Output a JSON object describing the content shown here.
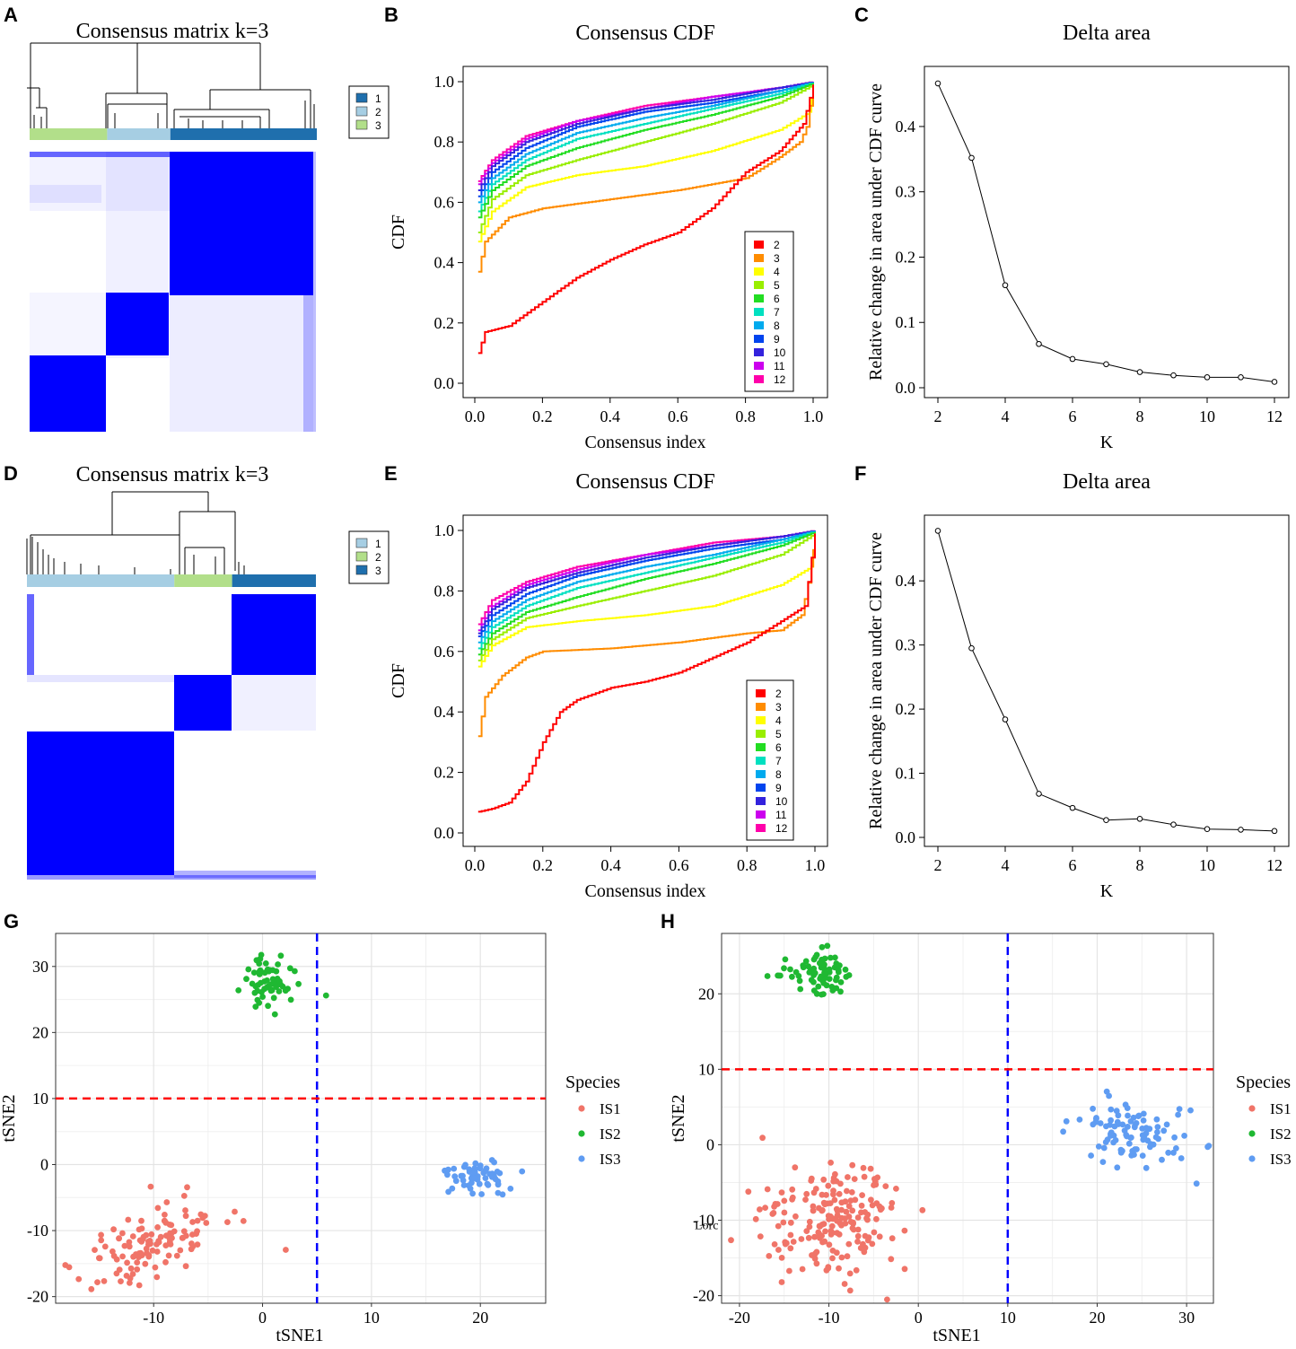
{
  "colors": {
    "matrix_blue": "#0000ff",
    "cdf_palette": [
      "#ff0000",
      "#ff8c00",
      "#ffff00",
      "#99ee00",
      "#22dd22",
      "#00e0c0",
      "#00aaee",
      "#0044ee",
      "#3322dd",
      "#cc00ee",
      "#ff00aa"
    ],
    "ts_is1": "#f07468",
    "ts_is2": "#1fb832",
    "ts_is3": "#5f9cf2",
    "vline": "#0000ff",
    "hline": "#ff0000"
  },
  "panels": {
    "A": {
      "label": "A",
      "title": "Consensus matrix k=3",
      "legend": [
        "1",
        "2",
        "3"
      ],
      "legend_colors": [
        "#1f6fad",
        "#a6cee3",
        "#b2df8a"
      ],
      "bar_colors": [
        "#b2df8a",
        "#a6cee3",
        "#1f6fad"
      ],
      "bar_widths": [
        0.27,
        0.22,
        0.51
      ]
    },
    "D": {
      "label": "D",
      "title": "Consensus matrix k=3",
      "legend": [
        "1",
        "2",
        "3"
      ],
      "legend_colors": [
        "#a6cee3",
        "#b2df8a",
        "#1f6fad"
      ],
      "bar_colors": [
        "#a6cee3",
        "#b2df8a",
        "#1f6fad"
      ],
      "bar_widths": [
        0.51,
        0.2,
        0.29
      ]
    },
    "B": {
      "label": "B"
    },
    "C": {
      "label": "C"
    },
    "E": {
      "label": "E"
    },
    "F": {
      "label": "F"
    },
    "G": {
      "label": "G"
    },
    "H": {
      "label": "H"
    }
  },
  "chart_data": [
    {
      "id": "B",
      "type": "line",
      "title": "Consensus CDF",
      "xlabel": "Consensus index",
      "ylabel": "CDF",
      "xlim": [
        0,
        1
      ],
      "ylim": [
        0,
        1
      ],
      "xticks": [
        "0.0",
        "0.2",
        "0.4",
        "0.6",
        "0.8",
        "1.0"
      ],
      "yticks": [
        "0.0",
        "0.2",
        "0.4",
        "0.6",
        "0.8",
        "1.0"
      ],
      "legend": [
        "2",
        "3",
        "4",
        "5",
        "6",
        "7",
        "8",
        "9",
        "10",
        "11",
        "12"
      ],
      "series": [
        {
          "name": "2",
          "x": [
            0.01,
            0.03,
            0.1,
            0.2,
            0.3,
            0.4,
            0.5,
            0.6,
            0.7,
            0.8,
            0.9,
            0.97,
            1.0
          ],
          "values": [
            0.1,
            0.17,
            0.19,
            0.27,
            0.35,
            0.41,
            0.46,
            0.5,
            0.58,
            0.7,
            0.77,
            0.86,
            0.99
          ]
        },
        {
          "name": "3",
          "x": [
            0.01,
            0.03,
            0.1,
            0.2,
            0.4,
            0.6,
            0.7,
            0.8,
            0.9,
            0.96,
            0.98,
            1.0
          ],
          "values": [
            0.37,
            0.47,
            0.55,
            0.58,
            0.61,
            0.64,
            0.66,
            0.68,
            0.75,
            0.8,
            0.85,
            0.99
          ]
        },
        {
          "name": "4",
          "x": [
            0.01,
            0.05,
            0.15,
            0.3,
            0.5,
            0.7,
            0.9,
            0.99,
            1.0
          ],
          "values": [
            0.47,
            0.57,
            0.65,
            0.69,
            0.72,
            0.77,
            0.84,
            0.9,
            0.99
          ]
        },
        {
          "name": "5",
          "x": [
            0.01,
            0.05,
            0.15,
            0.3,
            0.5,
            0.7,
            0.9,
            1.0
          ],
          "values": [
            0.5,
            0.61,
            0.69,
            0.74,
            0.8,
            0.86,
            0.93,
            0.99
          ]
        },
        {
          "name": "6",
          "x": [
            0.01,
            0.05,
            0.15,
            0.3,
            0.5,
            0.7,
            0.9,
            1.0
          ],
          "values": [
            0.55,
            0.64,
            0.72,
            0.78,
            0.84,
            0.89,
            0.95,
            0.995
          ]
        },
        {
          "name": "7",
          "x": [
            0.01,
            0.05,
            0.15,
            0.3,
            0.5,
            0.7,
            0.9,
            1.0
          ],
          "values": [
            0.57,
            0.66,
            0.74,
            0.81,
            0.86,
            0.91,
            0.96,
            0.997
          ]
        },
        {
          "name": "8",
          "x": [
            0.01,
            0.05,
            0.15,
            0.3,
            0.5,
            0.7,
            0.9,
            1.0
          ],
          "values": [
            0.6,
            0.68,
            0.76,
            0.83,
            0.88,
            0.92,
            0.97,
            0.998
          ]
        },
        {
          "name": "9",
          "x": [
            0.01,
            0.05,
            0.15,
            0.3,
            0.5,
            0.7,
            0.9,
            1.0
          ],
          "values": [
            0.62,
            0.7,
            0.78,
            0.85,
            0.9,
            0.93,
            0.97,
            0.998
          ]
        },
        {
          "name": "10",
          "x": [
            0.01,
            0.05,
            0.15,
            0.3,
            0.5,
            0.7,
            0.9,
            1.0
          ],
          "values": [
            0.64,
            0.72,
            0.8,
            0.86,
            0.91,
            0.94,
            0.98,
            0.999
          ]
        },
        {
          "name": "11",
          "x": [
            0.01,
            0.05,
            0.15,
            0.3,
            0.5,
            0.7,
            0.9,
            1.0
          ],
          "values": [
            0.66,
            0.73,
            0.81,
            0.87,
            0.91,
            0.95,
            0.98,
            0.999
          ]
        },
        {
          "name": "12",
          "x": [
            0.01,
            0.05,
            0.15,
            0.3,
            0.5,
            0.7,
            0.9,
            1.0
          ],
          "values": [
            0.67,
            0.74,
            0.82,
            0.87,
            0.92,
            0.95,
            0.98,
            1.0
          ]
        }
      ]
    },
    {
      "id": "C",
      "type": "line",
      "title": "Delta area",
      "xlabel": "K",
      "ylabel": "Relative change in area under CDF curve",
      "xlim": [
        2,
        12
      ],
      "ylim": [
        0,
        0.47
      ],
      "xticks": [
        "2",
        "4",
        "6",
        "8",
        "10",
        "12"
      ],
      "yticks": [
        "0.0",
        "0.1",
        "0.2",
        "0.3",
        "0.4"
      ],
      "x": [
        2,
        3,
        4,
        5,
        6,
        7,
        8,
        9,
        10,
        11,
        12
      ],
      "values": [
        0.466,
        0.352,
        0.157,
        0.067,
        0.044,
        0.036,
        0.024,
        0.019,
        0.016,
        0.016,
        0.009
      ]
    },
    {
      "id": "E",
      "type": "line",
      "title": "Consensus CDF",
      "xlabel": "Consensus index",
      "ylabel": "CDF",
      "xlim": [
        0,
        1
      ],
      "ylim": [
        0,
        1
      ],
      "xticks": [
        "0.0",
        "0.2",
        "0.4",
        "0.6",
        "0.8",
        "1.0"
      ],
      "yticks": [
        "0.0",
        "0.2",
        "0.4",
        "0.6",
        "0.8",
        "1.0"
      ],
      "legend": [
        "2",
        "3",
        "4",
        "5",
        "6",
        "7",
        "8",
        "9",
        "10",
        "11",
        "12"
      ],
      "series": [
        {
          "name": "2",
          "x": [
            0.01,
            0.05,
            0.1,
            0.15,
            0.2,
            0.25,
            0.3,
            0.4,
            0.5,
            0.6,
            0.7,
            0.8,
            0.9,
            0.97,
            1.0
          ],
          "values": [
            0.07,
            0.08,
            0.1,
            0.17,
            0.3,
            0.4,
            0.44,
            0.48,
            0.5,
            0.53,
            0.58,
            0.63,
            0.7,
            0.75,
            0.99
          ]
        },
        {
          "name": "3",
          "x": [
            0.01,
            0.03,
            0.08,
            0.15,
            0.2,
            0.4,
            0.6,
            0.8,
            0.9,
            0.96,
            0.99,
            1.0
          ],
          "values": [
            0.32,
            0.45,
            0.52,
            0.58,
            0.6,
            0.61,
            0.63,
            0.66,
            0.67,
            0.72,
            0.88,
            0.99
          ]
        },
        {
          "name": "4",
          "x": [
            0.01,
            0.05,
            0.15,
            0.3,
            0.5,
            0.7,
            0.9,
            0.99,
            1.0
          ],
          "values": [
            0.55,
            0.62,
            0.68,
            0.7,
            0.72,
            0.75,
            0.82,
            0.88,
            0.99
          ]
        },
        {
          "name": "5",
          "x": [
            0.01,
            0.05,
            0.15,
            0.3,
            0.5,
            0.7,
            0.9,
            1.0
          ],
          "values": [
            0.57,
            0.64,
            0.71,
            0.75,
            0.8,
            0.85,
            0.92,
            0.99
          ]
        },
        {
          "name": "6",
          "x": [
            0.01,
            0.05,
            0.15,
            0.3,
            0.5,
            0.7,
            0.9,
            1.0
          ],
          "values": [
            0.59,
            0.66,
            0.73,
            0.78,
            0.84,
            0.89,
            0.95,
            0.995
          ]
        },
        {
          "name": "7",
          "x": [
            0.01,
            0.05,
            0.15,
            0.3,
            0.5,
            0.7,
            0.9,
            1.0
          ],
          "values": [
            0.61,
            0.68,
            0.75,
            0.81,
            0.86,
            0.91,
            0.96,
            0.997
          ]
        },
        {
          "name": "8",
          "x": [
            0.01,
            0.05,
            0.15,
            0.3,
            0.5,
            0.7,
            0.9,
            1.0
          ],
          "values": [
            0.63,
            0.7,
            0.77,
            0.83,
            0.88,
            0.92,
            0.97,
            0.998
          ]
        },
        {
          "name": "9",
          "x": [
            0.01,
            0.05,
            0.15,
            0.3,
            0.5,
            0.7,
            0.9,
            1.0
          ],
          "values": [
            0.65,
            0.72,
            0.79,
            0.85,
            0.9,
            0.94,
            0.97,
            0.998
          ]
        },
        {
          "name": "10",
          "x": [
            0.01,
            0.05,
            0.15,
            0.3,
            0.5,
            0.7,
            0.9,
            1.0
          ],
          "values": [
            0.66,
            0.74,
            0.81,
            0.86,
            0.91,
            0.95,
            0.98,
            0.999
          ]
        },
        {
          "name": "11",
          "x": [
            0.01,
            0.05,
            0.15,
            0.3,
            0.5,
            0.7,
            0.9,
            1.0
          ],
          "values": [
            0.67,
            0.75,
            0.82,
            0.87,
            0.92,
            0.95,
            0.98,
            0.999
          ]
        },
        {
          "name": "12",
          "x": [
            0.01,
            0.05,
            0.15,
            0.3,
            0.5,
            0.7,
            0.9,
            1.0
          ],
          "values": [
            0.69,
            0.77,
            0.83,
            0.88,
            0.92,
            0.96,
            0.98,
            1.0
          ]
        }
      ]
    },
    {
      "id": "F",
      "type": "line",
      "title": "Delta area",
      "xlabel": "K",
      "ylabel": "Relative change in area under CDF curve",
      "xlim": [
        2,
        12
      ],
      "ylim": [
        0,
        0.48
      ],
      "xticks": [
        "2",
        "4",
        "6",
        "8",
        "10",
        "12"
      ],
      "yticks": [
        "0.0",
        "0.1",
        "0.2",
        "0.3",
        "0.4"
      ],
      "x": [
        2,
        3,
        4,
        5,
        6,
        7,
        8,
        9,
        10,
        11,
        12
      ],
      "values": [
        0.478,
        0.295,
        0.184,
        0.068,
        0.046,
        0.027,
        0.029,
        0.02,
        0.013,
        0.012,
        0.01
      ]
    },
    {
      "id": "G",
      "type": "scatter",
      "xlabel": "tSNE1",
      "ylabel": "tSNE2",
      "xlim": [
        -19,
        26
      ],
      "ylim": [
        -21,
        35
      ],
      "xticks": [
        -10,
        0,
        10,
        20
      ],
      "yticks": [
        -20,
        -10,
        0,
        10,
        20,
        30
      ],
      "xtick_labels": [
        "-10",
        "0",
        "10",
        "20"
      ],
      "ytick_labels": [
        "-20",
        "-10",
        "0",
        "10",
        "20",
        "30"
      ],
      "vline": 5,
      "hline": 10,
      "legend_title": "Species",
      "series": [
        {
          "name": "IS1",
          "cluster": {
            "cx": -10.5,
            "cy": -12,
            "sx": 3.4,
            "sy": 2.7,
            "n": 120,
            "slope": 0.5,
            "seed": 11
          }
        },
        {
          "name": "IS2",
          "cluster": {
            "cx": 0.5,
            "cy": 28,
            "sx": 1.3,
            "sy": 1.8,
            "n": 60,
            "slope": 0,
            "seed": 23
          }
        },
        {
          "name": "IS3",
          "cluster": {
            "cx": 19.5,
            "cy": -1.5,
            "sx": 1.6,
            "sy": 1.6,
            "n": 55,
            "slope": 0,
            "seed": 37
          }
        }
      ]
    },
    {
      "id": "H",
      "type": "scatter",
      "xlabel": "tSNE1",
      "ylabel": "tSNE2",
      "xlim": [
        -22,
        33
      ],
      "ylim": [
        -21,
        28
      ],
      "xticks": [
        -20,
        -10,
        0,
        10,
        20,
        30
      ],
      "yticks": [
        -20,
        -10,
        0,
        10,
        20
      ],
      "xtick_labels": [
        "-20",
        "-10",
        "0",
        "10",
        "20",
        "30"
      ],
      "ytick_labels": [
        "-20",
        "-10",
        "0",
        "10",
        "20"
      ],
      "vline": 10,
      "hline": 10,
      "legend_title": "Species",
      "overlay_text": "Lorc",
      "series": [
        {
          "name": "IS1",
          "cluster": {
            "cx": -10,
            "cy": -10,
            "sx": 4.2,
            "sy": 4.3,
            "n": 190,
            "slope": 0,
            "seed": 51
          }
        },
        {
          "name": "IS2",
          "cluster": {
            "cx": -11,
            "cy": 22.5,
            "sx": 2.1,
            "sy": 1.6,
            "n": 70,
            "slope": 0,
            "seed": 63
          }
        },
        {
          "name": "IS3",
          "cluster": {
            "cx": 24.5,
            "cy": 1.5,
            "sx": 3.0,
            "sy": 2.2,
            "n": 95,
            "slope": 0,
            "seed": 77
          }
        }
      ]
    }
  ]
}
